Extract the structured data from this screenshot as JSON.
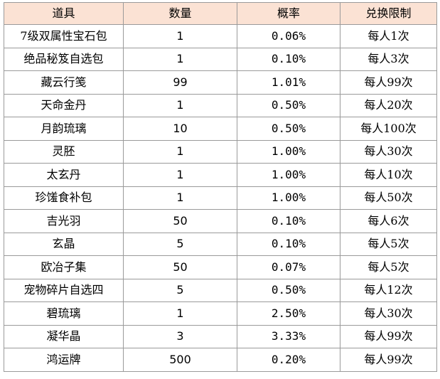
{
  "table": {
    "header_fill": "#fbe2d4",
    "columns": [
      "道具",
      "数量",
      "概率",
      "兑换限制"
    ],
    "rows": [
      {
        "item": "7级双属性宝石包",
        "qty": "1",
        "prob": "0.06%",
        "limit": "每人1次"
      },
      {
        "item": "绝品秘笈自选包",
        "qty": "1",
        "prob": "0.10%",
        "limit": "每人3次"
      },
      {
        "item": "藏云行笺",
        "qty": "99",
        "prob": "1.01%",
        "limit": "每人99次"
      },
      {
        "item": "天命金丹",
        "qty": "1",
        "prob": "0.50%",
        "limit": "每人20次"
      },
      {
        "item": "月韵琉璃",
        "qty": "10",
        "prob": "0.50%",
        "limit": "每人100次"
      },
      {
        "item": "灵胚",
        "qty": "1",
        "prob": "1.00%",
        "limit": "每人30次"
      },
      {
        "item": "太玄丹",
        "qty": "1",
        "prob": "1.00%",
        "limit": "每人10次"
      },
      {
        "item": "珍馐食补包",
        "qty": "1",
        "prob": "1.00%",
        "limit": "每人50次"
      },
      {
        "item": "吉光羽",
        "qty": "50",
        "prob": "0.10%",
        "limit": "每人6次"
      },
      {
        "item": "玄晶",
        "qty": "5",
        "prob": "0.10%",
        "limit": "每人5次"
      },
      {
        "item": "欧冶子集",
        "qty": "50",
        "prob": "0.07%",
        "limit": "每人5次"
      },
      {
        "item": "宠物碎片自选四",
        "qty": "5",
        "prob": "0.50%",
        "limit": "每人12次"
      },
      {
        "item": "碧琉璃",
        "qty": "1",
        "prob": "2.50%",
        "limit": "每人30次"
      },
      {
        "item": "凝华晶",
        "qty": "3",
        "prob": "3.33%",
        "limit": "每人99次"
      },
      {
        "item": "鸿运牌",
        "qty": "500",
        "prob": "0.20%",
        "limit": "每人99次"
      }
    ]
  }
}
